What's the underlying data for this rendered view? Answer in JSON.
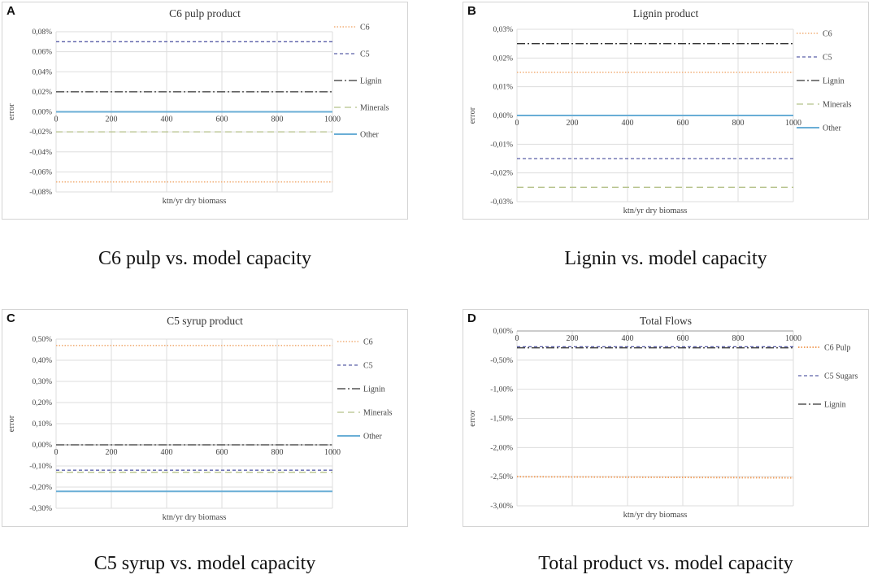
{
  "captions": {
    "a": "C6 pulp vs. model capacity",
    "b": "Lignin vs. model capacity",
    "c": "C5 syrup vs. model capacity",
    "d": "Total product vs. model capacity"
  },
  "letters": {
    "a": "A",
    "b": "B",
    "c": "C",
    "d": "D"
  },
  "colors": {
    "C6": "#f2b07a",
    "C5": "#5a5fa8",
    "Lignin": "#333333",
    "Minerals": "#b5c28a",
    "Other": "#6aaed6",
    "C6 Pulp": "#f0a060",
    "C5 Sugars": "#5a5fa8",
    "grid": "#dddddd"
  },
  "chart_data": [
    {
      "id": "a",
      "type": "line",
      "title": "C6 pulp product",
      "xlabel": "ktn/yr dry biomass",
      "ylabel": "error",
      "x": [
        0,
        1000
      ],
      "xlim": [
        0,
        1000
      ],
      "xticks": [
        "0",
        "200",
        "400",
        "600",
        "800",
        "1000"
      ],
      "ylim": [
        -0.08,
        0.08
      ],
      "yticks": [
        0.08,
        0.06,
        0.04,
        0.02,
        0.0,
        -0.02,
        -0.04,
        -0.06,
        -0.08
      ],
      "ytick_labels": [
        "0,08%",
        "0,06%",
        "0,04%",
        "0,02%",
        "0,00%",
        "-0,02%",
        "-0,04%",
        "-0,06%",
        "-0,08%"
      ],
      "series": [
        {
          "name": "C6",
          "values": [
            -0.07,
            -0.07
          ]
        },
        {
          "name": "C5",
          "values": [
            0.07,
            0.07
          ]
        },
        {
          "name": "Lignin",
          "values": [
            0.02,
            0.02
          ]
        },
        {
          "name": "Minerals",
          "values": [
            -0.02,
            -0.02
          ]
        },
        {
          "name": "Other",
          "values": [
            0.0,
            0.0
          ]
        }
      ]
    },
    {
      "id": "b",
      "type": "line",
      "title": "Lignin product",
      "xlabel": "ktn/yr dry biomass",
      "ylabel": "error",
      "x": [
        0,
        1000
      ],
      "xlim": [
        0,
        1000
      ],
      "xticks": [
        "0",
        "200",
        "400",
        "600",
        "800",
        "1000"
      ],
      "ylim": [
        -0.03,
        0.03
      ],
      "yticks": [
        0.03,
        0.02,
        0.01,
        0.0,
        -0.01,
        -0.02,
        -0.03
      ],
      "ytick_labels": [
        "0,03%",
        "0,02%",
        "0,01%",
        "0,00%",
        "-0,01%",
        "-0,02%",
        "-0,03%"
      ],
      "series": [
        {
          "name": "C6",
          "values": [
            0.015,
            0.015
          ]
        },
        {
          "name": "C5",
          "values": [
            -0.015,
            -0.015
          ]
        },
        {
          "name": "Lignin",
          "values": [
            0.025,
            0.025
          ]
        },
        {
          "name": "Minerals",
          "values": [
            -0.025,
            -0.025
          ]
        },
        {
          "name": "Other",
          "values": [
            0.0,
            0.0
          ]
        }
      ]
    },
    {
      "id": "c",
      "type": "line",
      "title": "C5 syrup product",
      "xlabel": "ktn/yr dry biomass",
      "ylabel": "error",
      "x": [
        0,
        1000
      ],
      "xlim": [
        0,
        1000
      ],
      "xticks": [
        "0",
        "200",
        "400",
        "600",
        "800",
        "1000"
      ],
      "ylim": [
        -0.3,
        0.5
      ],
      "yticks": [
        0.5,
        0.4,
        0.3,
        0.2,
        0.1,
        0.0,
        -0.1,
        -0.2,
        -0.3
      ],
      "ytick_labels": [
        "0,50%",
        "0,40%",
        "0,30%",
        "0,20%",
        "0,10%",
        "0,00%",
        "-0,10%",
        "-0,20%",
        "-0,30%"
      ],
      "series": [
        {
          "name": "C6",
          "values": [
            0.47,
            0.47
          ]
        },
        {
          "name": "C5",
          "values": [
            -0.12,
            -0.12
          ]
        },
        {
          "name": "Lignin",
          "values": [
            0.0,
            0.0
          ]
        },
        {
          "name": "Minerals",
          "values": [
            -0.13,
            -0.13
          ]
        },
        {
          "name": "Other",
          "values": [
            -0.22,
            -0.22
          ]
        }
      ]
    },
    {
      "id": "d",
      "type": "line",
      "title": "Total Flows",
      "xlabel": "ktn/yr dry biomass",
      "ylabel": "error",
      "x": [
        0,
        1000
      ],
      "xlim": [
        0,
        1000
      ],
      "xticks": [
        "0",
        "200",
        "400",
        "600",
        "800",
        "1000"
      ],
      "ylim": [
        -3.0,
        0.0
      ],
      "yticks": [
        0.0,
        -0.5,
        -1.0,
        -1.5,
        -2.0,
        -2.5,
        -3.0
      ],
      "ytick_labels": [
        "0,00%",
        "-0,50%",
        "-1,00%",
        "-1,50%",
        "-2,00%",
        "-2,50%",
        "-3,00%"
      ],
      "series": [
        {
          "name": "C6 Pulp",
          "values": [
            -2.5,
            -2.52
          ]
        },
        {
          "name": "C5 Sugars",
          "values": [
            -0.27,
            -0.27
          ]
        },
        {
          "name": "Lignin",
          "values": [
            -0.29,
            -0.29
          ]
        }
      ]
    }
  ]
}
